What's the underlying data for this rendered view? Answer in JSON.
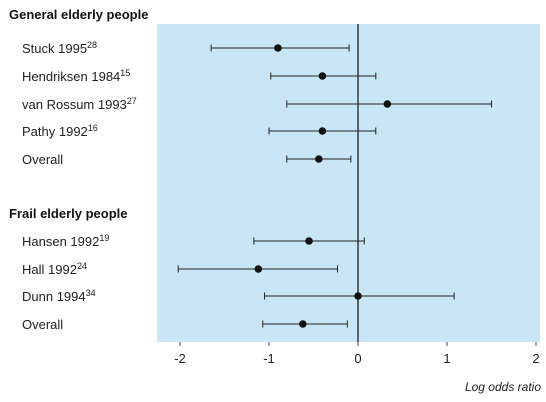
{
  "chart_data": {
    "type": "forest",
    "xlabel": "Log odds ratio",
    "xlim": [
      -2.2,
      2.0
    ],
    "xticks": [
      -2,
      -1,
      0,
      1,
      2
    ],
    "xtick_labels": [
      "-2",
      "-1",
      "0",
      "1",
      "2"
    ],
    "reference_line": 0,
    "panel_color": "#c8e6f6",
    "groups": [
      {
        "title": "General elderly people",
        "rows": [
          {
            "label": "Stuck 1995",
            "ref": "28",
            "estimate": -0.9,
            "lower": -1.65,
            "upper": -0.1
          },
          {
            "label": "Hendriksen 1984",
            "ref": "15",
            "estimate": -0.4,
            "lower": -0.98,
            "upper": 0.2
          },
          {
            "label": "van Rossum 1993",
            "ref": "27",
            "estimate": 0.33,
            "lower": -0.8,
            "upper": 1.5
          },
          {
            "label": "Pathy 1992",
            "ref": "16",
            "estimate": -0.4,
            "lower": -1.0,
            "upper": 0.2
          },
          {
            "label": "Overall",
            "ref": "",
            "estimate": -0.44,
            "lower": -0.8,
            "upper": -0.08
          }
        ]
      },
      {
        "title": "Frail elderly people",
        "rows": [
          {
            "label": "Hansen 1992",
            "ref": "19",
            "estimate": -0.55,
            "lower": -1.17,
            "upper": 0.07
          },
          {
            "label": "Hall 1992",
            "ref": "24",
            "estimate": -1.12,
            "lower": -2.02,
            "upper": -0.23
          },
          {
            "label": "Dunn 1994",
            "ref": "34",
            "estimate": 0.0,
            "lower": -1.05,
            "upper": 1.08
          },
          {
            "label": "Overall",
            "ref": "",
            "estimate": -0.62,
            "lower": -1.07,
            "upper": -0.12
          }
        ]
      }
    ]
  }
}
